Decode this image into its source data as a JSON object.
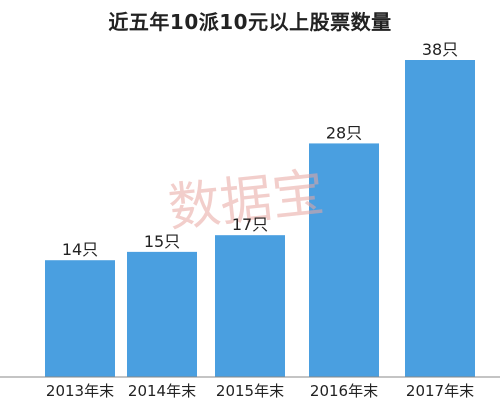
{
  "chart_data": {
    "type": "bar",
    "title": "近五年10派10元以上股票数量",
    "categories": [
      "2013年末",
      "2014年末",
      "2015年末",
      "2016年末",
      "2017年末"
    ],
    "values": [
      14,
      15,
      17,
      28,
      38
    ],
    "data_labels": [
      "14只",
      "15只",
      "17只",
      "28只",
      "38只"
    ],
    "xlabel": "",
    "ylabel": "",
    "ylim": [
      0,
      38
    ],
    "grid": false,
    "legend": "none",
    "bar_color": "#4a9fe0",
    "axis_color": "#888888"
  },
  "watermark": "数据宝"
}
